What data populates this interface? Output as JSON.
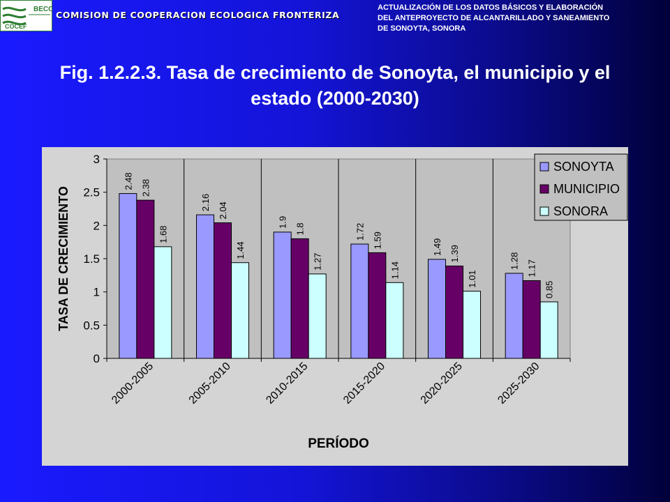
{
  "header": {
    "logo_lines": [
      "BECC",
      "COCEF"
    ],
    "org_name": "COMISION DE COOPERACION ECOLOGICA FRONTERIZA",
    "project_lines": [
      "ACTUALIZACIÓN DE LOS DATOS BÁSICOS Y ELABORACIÓN",
      "DEL ANTEPROYECTO DE ALCANTARILLADO Y SANEAMIENTO",
      "DE SONOYTA, SONORA"
    ]
  },
  "title_lines": [
    "Fig. 1.2.2.3. Tasa de crecimiento de Sonoyta, el municipio y el",
    "estado (2000-2030)"
  ],
  "colors": {
    "sonoyta": "#9999ff",
    "municipio": "#660066",
    "sonora": "#ccffff",
    "plot_bg": "#c0c0c0",
    "chart_bg": "#d4d4d4"
  },
  "chart_data": {
    "type": "bar",
    "categories": [
      "2000-2005",
      "2005-2010",
      "2010-2015",
      "2015-2020",
      "2020-2025",
      "2025-2030"
    ],
    "series": [
      {
        "name": "SONOYTA",
        "values": [
          2.48,
          2.16,
          1.9,
          1.72,
          1.49,
          1.28
        ],
        "labels": [
          "2.48",
          "2.16",
          "1.9",
          "1.72",
          "1.49",
          "1.28"
        ]
      },
      {
        "name": "MUNICIPIO",
        "values": [
          2.38,
          2.04,
          1.8,
          1.59,
          1.39,
          1.17
        ],
        "labels": [
          "2.38",
          "2.04",
          "1.8",
          "1.59",
          "1.39",
          "1.17"
        ]
      },
      {
        "name": "SONORA",
        "values": [
          1.68,
          1.44,
          1.27,
          1.14,
          1.01,
          0.85
        ],
        "labels": [
          "1.68",
          "1.44",
          "1.27",
          "1.14",
          "1.01",
          "0.85"
        ]
      }
    ],
    "xlabel": "PERÍODO",
    "ylabel": "TASA DE CRECIMIENTO",
    "ylim": [
      0,
      3
    ],
    "yticks": [
      "0",
      "0.5",
      "1",
      "1.5",
      "2",
      "2.5",
      "3"
    ],
    "grid": "vertical",
    "legend": "top-right"
  }
}
